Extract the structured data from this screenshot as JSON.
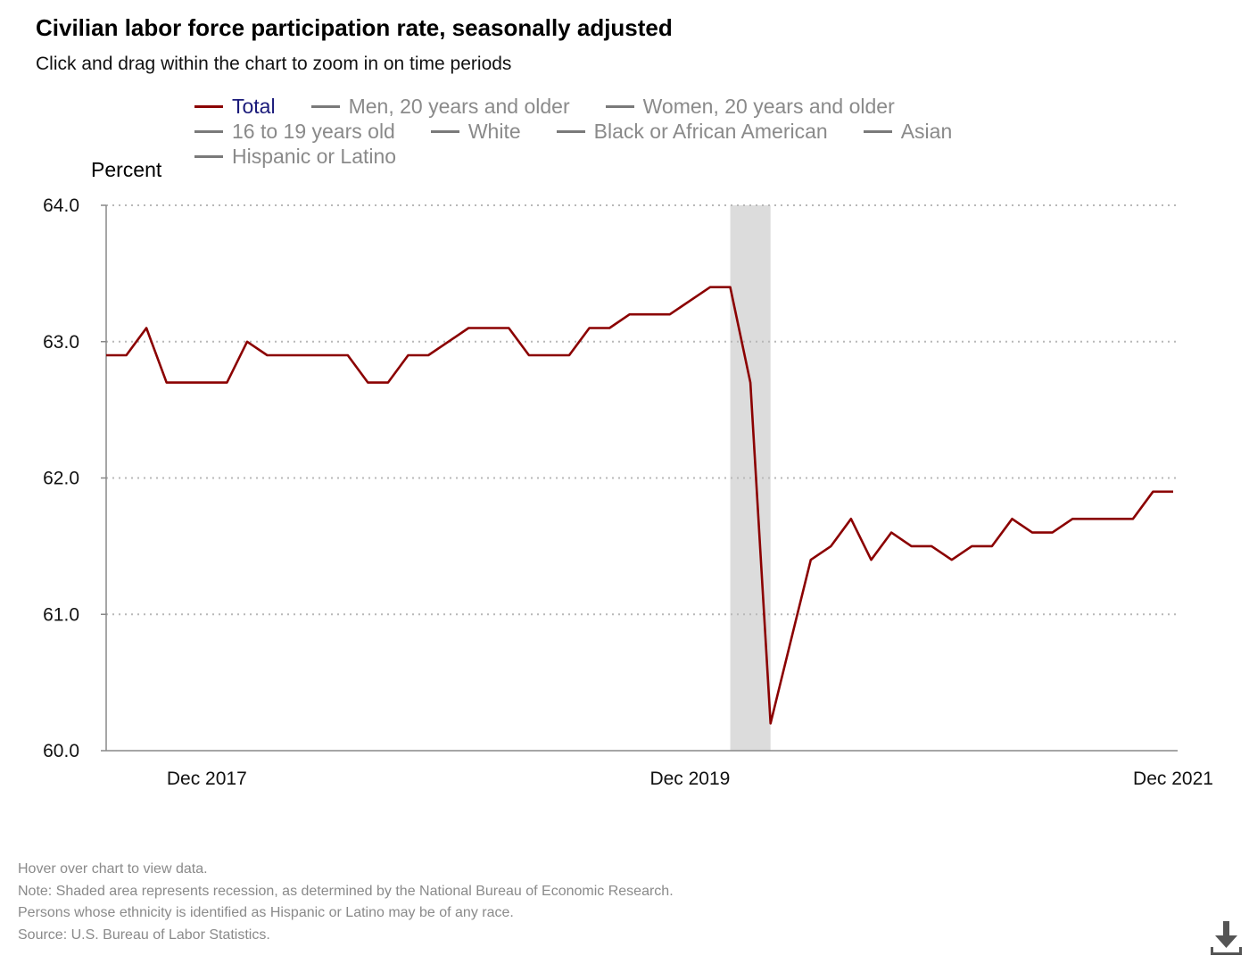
{
  "header": {
    "title": "Civilian labor force participation rate, seasonally adjusted",
    "subtitle": "Click and drag within the chart to zoom in on time periods"
  },
  "legend": [
    [
      {
        "label": "Total",
        "active": true
      },
      {
        "label": "Men, 20 years and older",
        "active": false
      },
      {
        "label": "Women, 20 years and older",
        "active": false
      }
    ],
    [
      {
        "label": "16 to 19 years old",
        "active": false
      },
      {
        "label": "White",
        "active": false
      },
      {
        "label": "Black or African American",
        "active": false
      },
      {
        "label": "Asian",
        "active": false
      }
    ],
    [
      {
        "label": "Hispanic or Latino",
        "active": false
      }
    ]
  ],
  "footer": {
    "lines": [
      "Hover over chart to view data.",
      "Note: Shaded area represents recession, as determined by the National Bureau of Economic Research.",
      "Persons whose ethnicity is identified as Hispanic or Latino may be of any race.",
      "Source: U.S. Bureau of Labor Statistics."
    ]
  },
  "colors": {
    "series_total": "#8b0000",
    "recession_shade": "#dcdcdc",
    "grid": "#b8b8b8",
    "legend_inactive": "#8a8a8a",
    "legend_active_text": "#1a1a7a"
  },
  "chart_data": {
    "type": "line",
    "title": "Civilian labor force participation rate, seasonally adjusted",
    "ylabel": "Percent",
    "xlabel": "",
    "ylim": [
      60.0,
      64.0
    ],
    "yticks": [
      "64.0",
      "63.0",
      "62.0",
      "61.0",
      "60.0"
    ],
    "xticks": [
      {
        "label": "Dec 2017",
        "x_index": 5
      },
      {
        "label": "Dec 2019",
        "x_index": 29
      },
      {
        "label": "Dec 2021",
        "x_index": 53
      }
    ],
    "x_start": "Jul 2017",
    "x_end": "Dec 2021",
    "grid": true,
    "recession": {
      "start_index": 31,
      "end_index": 33,
      "label": "recession"
    },
    "series": [
      {
        "name": "Total",
        "values": [
          62.9,
          62.9,
          63.1,
          62.7,
          62.7,
          62.7,
          62.7,
          63.0,
          62.9,
          62.9,
          62.9,
          62.9,
          62.9,
          62.7,
          62.7,
          62.9,
          62.9,
          63.0,
          63.1,
          63.1,
          63.1,
          62.9,
          62.9,
          62.9,
          63.1,
          63.1,
          63.2,
          63.2,
          63.2,
          63.3,
          63.4,
          63.4,
          62.7,
          60.2,
          60.8,
          61.4,
          61.5,
          61.7,
          61.4,
          61.6,
          61.5,
          61.5,
          61.4,
          61.5,
          61.5,
          61.7,
          61.6,
          61.6,
          61.7,
          61.7,
          61.7,
          61.7,
          61.9,
          61.9
        ]
      }
    ]
  }
}
